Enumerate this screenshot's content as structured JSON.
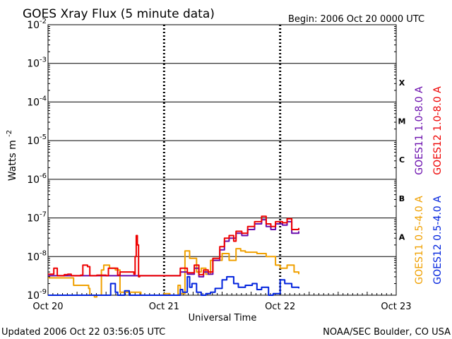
{
  "header": {
    "title": "GOES Xray Flux (5 minute data)",
    "begin": "Begin:  2006 Oct 20 0000 UTC"
  },
  "footer": {
    "updated": "Updated 2006 Oct 22 03:56:05 UTC",
    "credit": "NOAA/SEC Boulder, CO USA"
  },
  "chart_data": {
    "type": "line",
    "title": "GOES Xray Flux (5 minute data)",
    "xlabel": "Universal Time",
    "ylabel_base": "Watts m",
    "ylabel_exp": "-2",
    "yscale": "log",
    "ylim": [
      1e-09,
      0.01
    ],
    "xlim": [
      "Oct 20",
      "Oct 23"
    ],
    "x_unit": "days",
    "x_ticks": [
      "Oct 20",
      "Oct 21",
      "Oct 22",
      "Oct 23"
    ],
    "y_ticks": [
      {
        "base": "10",
        "exp": "-2",
        "value": 0.01
      },
      {
        "base": "10",
        "exp": "-3",
        "value": 0.001
      },
      {
        "base": "10",
        "exp": "-4",
        "value": 0.0001
      },
      {
        "base": "10",
        "exp": "-5",
        "value": 1e-05
      },
      {
        "base": "10",
        "exp": "-6",
        "value": 1e-06
      },
      {
        "base": "10",
        "exp": "-7",
        "value": 1e-07
      },
      {
        "base": "10",
        "exp": "-8",
        "value": 1e-08
      },
      {
        "base": "10",
        "exp": "-9",
        "value": 1e-09
      }
    ],
    "flare_classes": [
      {
        "label": "X",
        "value": 0.00032
      },
      {
        "label": "M",
        "value": 3.2e-05
      },
      {
        "label": "C",
        "value": 3.2e-06
      },
      {
        "label": "B",
        "value": 3.2e-07
      },
      {
        "label": "A",
        "value": 3.2e-08
      }
    ],
    "grid": {
      "horizontal": true,
      "vertical_dashed": true
    },
    "legend": {
      "placement": "right",
      "orientation": "vertical"
    },
    "series": [
      {
        "name": "GOES11 1.0-8.0 A",
        "color": "#6a0dad",
        "x": [
          0.0,
          1.1,
          1.14,
          1.2,
          1.26,
          1.3,
          1.34,
          1.38,
          1.42,
          1.48,
          1.52,
          1.56,
          1.62,
          1.67,
          1.72,
          1.78,
          1.84,
          1.88,
          1.92,
          1.96,
          2.02,
          2.06,
          2.1,
          2.16
        ],
        "values": [
          3.2e-09,
          3.2e-09,
          4e-09,
          3.5e-09,
          5e-09,
          3e-09,
          4e-09,
          3.5e-09,
          8e-09,
          1.5e-08,
          2.5e-08,
          3e-08,
          4e-08,
          3.5e-08,
          5e-08,
          7e-08,
          9e-08,
          6e-08,
          5e-08,
          7e-08,
          6.5e-08,
          8e-08,
          4e-08,
          4.5e-08
        ]
      },
      {
        "name": "GOES12 1.0-8.0 A",
        "color": "#ee0000",
        "x": [
          0.0,
          0.03,
          0.05,
          0.08,
          0.14,
          0.17,
          0.2,
          0.28,
          0.3,
          0.34,
          0.36,
          0.42,
          0.5,
          0.52,
          0.6,
          0.62,
          0.74,
          0.75,
          0.76,
          0.77,
          0.78,
          0.79,
          1.1,
          1.14,
          1.2,
          1.26,
          1.3,
          1.34,
          1.38,
          1.42,
          1.48,
          1.52,
          1.56,
          1.6,
          1.62,
          1.67,
          1.72,
          1.78,
          1.84,
          1.88,
          1.92,
          1.96,
          2.02,
          2.06,
          2.1,
          2.16
        ],
        "values": [
          3.5e-09,
          3.5e-09,
          5e-09,
          3.2e-09,
          3.4e-09,
          3.5e-09,
          3.2e-09,
          3.3e-09,
          6e-09,
          5.5e-09,
          3.2e-09,
          3.3e-09,
          3.2e-09,
          5e-09,
          3.3e-09,
          4e-09,
          3.5e-09,
          1e-08,
          3.5e-08,
          2e-08,
          3e-09,
          3.2e-09,
          3.2e-09,
          5e-09,
          3.8e-09,
          6e-09,
          3.4e-09,
          4.5e-09,
          4e-09,
          9e-09,
          1.8e-08,
          3e-08,
          3.5e-08,
          2.5e-08,
          4.5e-08,
          4e-08,
          6e-08,
          8e-08,
          1.1e-07,
          7e-08,
          6e-08,
          8e-08,
          7.5e-08,
          9.5e-08,
          5e-08,
          5.5e-08
        ]
      },
      {
        "name": "GOES11 0.5-4.0 A",
        "color": "#f0a000",
        "x": [
          0.0,
          0.2,
          0.22,
          0.35,
          0.36,
          0.4,
          0.42,
          0.46,
          0.48,
          0.53,
          0.58,
          0.62,
          0.8,
          1.0,
          1.05,
          1.12,
          1.14,
          1.18,
          1.22,
          1.28,
          1.32,
          1.36,
          1.4,
          1.5,
          1.56,
          1.62,
          1.66,
          1.7,
          1.8,
          1.88,
          1.96,
          2.0,
          2.06,
          2.12,
          2.16
        ],
        "values": [
          2.8e-09,
          2.8e-09,
          1.8e-09,
          1.5e-09,
          1e-09,
          9e-10,
          1e-09,
          4.5e-09,
          6e-09,
          5e-09,
          4.5e-09,
          1.2e-09,
          1e-09,
          1.1e-09,
          1e-09,
          1.8e-09,
          1.1e-09,
          1.4e-08,
          9e-09,
          4e-09,
          5e-09,
          3.5e-09,
          8e-09,
          1.2e-08,
          8e-09,
          1.6e-08,
          1.4e-08,
          1.3e-08,
          1.2e-08,
          1e-08,
          6e-09,
          5e-09,
          6e-09,
          4e-09,
          3.5e-09
        ]
      },
      {
        "name": "GOES12 0.5-4.0 A",
        "color": "#0022dd",
        "x": [
          0.0,
          0.52,
          0.54,
          0.58,
          0.6,
          0.66,
          0.7,
          1.1,
          1.14,
          1.16,
          1.2,
          1.22,
          1.24,
          1.28,
          1.32,
          1.36,
          1.4,
          1.44,
          1.5,
          1.54,
          1.6,
          1.64,
          1.7,
          1.76,
          1.8,
          1.84,
          1.9,
          1.94,
          2.0,
          2.04,
          2.1,
          2.16
        ],
        "values": [
          1e-09,
          1e-09,
          2e-09,
          1.2e-09,
          1e-09,
          1.3e-09,
          1e-09,
          1e-09,
          1.4e-09,
          1.2e-09,
          3e-09,
          1.6e-09,
          2e-09,
          1.2e-09,
          1e-09,
          1.1e-09,
          1.2e-09,
          1.5e-09,
          2.5e-09,
          3e-09,
          2e-09,
          1.6e-09,
          1.8e-09,
          2e-09,
          1.4e-09,
          1.6e-09,
          1e-09,
          1.1e-09,
          2.5e-09,
          2e-09,
          1.6e-09,
          1.5e-09
        ]
      }
    ]
  }
}
